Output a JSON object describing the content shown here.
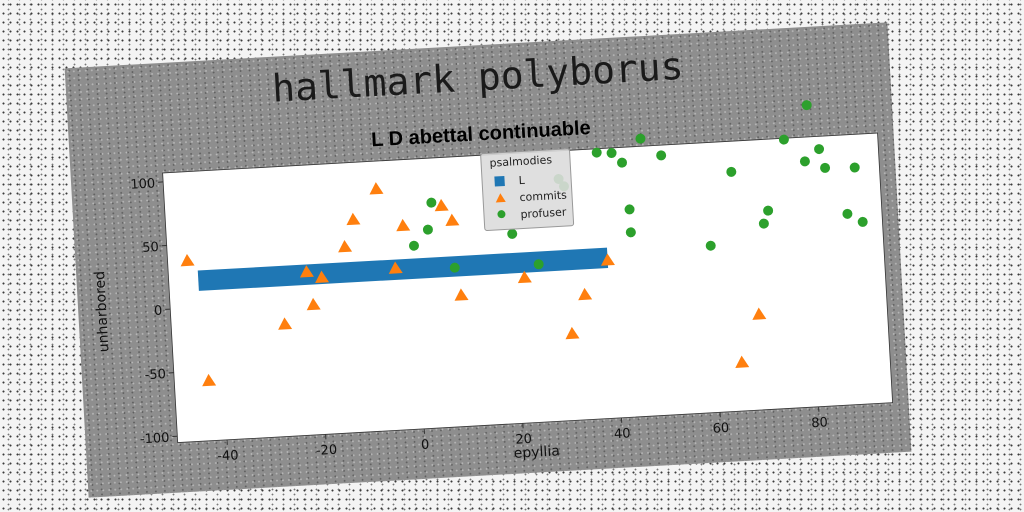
{
  "chart_data": {
    "type": "scatter",
    "suptitle": "hallmark polyborus",
    "title": "L D abettal continuable",
    "xlabel": "epyllia",
    "ylabel": "unharbored",
    "xlim": [
      -50,
      95
    ],
    "ylim": [
      -105,
      107
    ],
    "xticks": [
      -40,
      -20,
      0,
      20,
      40,
      60,
      80
    ],
    "yticks": [
      -100,
      -50,
      0,
      50,
      100
    ],
    "legend": {
      "title": "psalmodies",
      "placement": "top-center"
    },
    "grid": false,
    "series": [
      {
        "name": "L",
        "kind": "bar",
        "color": "#1f77b4",
        "x_start": -44,
        "x_end": 39,
        "y_low": 13,
        "y_high": 29
      },
      {
        "name": "commits",
        "kind": "scatter",
        "marker": "triangle",
        "color": "#ff7f0e",
        "points": [
          [
            -46,
            37
          ],
          [
            -43,
            -58
          ],
          [
            -27,
            -17
          ],
          [
            -22,
            23
          ],
          [
            -21,
            -3
          ],
          [
            -19,
            18
          ],
          [
            -14,
            41
          ],
          [
            -12,
            62
          ],
          [
            -7,
            85
          ],
          [
            -4,
            22
          ],
          [
            -2,
            55
          ],
          [
            6,
            69
          ],
          [
            8,
            57
          ],
          [
            9,
            -2
          ],
          [
            22,
            9
          ],
          [
            31,
            -37
          ],
          [
            34,
            -7
          ],
          [
            39,
            19
          ],
          [
            65,
            -67
          ],
          [
            69,
            -30
          ]
        ]
      },
      {
        "name": "profuser",
        "kind": "scatter",
        "marker": "circle",
        "color": "#2ca02c",
        "points": [
          [
            0,
            39
          ],
          [
            3,
            51
          ],
          [
            4,
            72
          ],
          [
            8,
            20
          ],
          [
            20,
            44
          ],
          [
            25,
            19
          ],
          [
            30,
            85
          ],
          [
            31,
            79
          ],
          [
            38,
            104
          ],
          [
            41,
            103
          ],
          [
            43,
            95
          ],
          [
            44,
            40
          ],
          [
            44,
            58
          ],
          [
            47,
            113
          ],
          [
            51,
            99
          ],
          [
            60,
            26
          ],
          [
            65,
            83
          ],
          [
            71,
            41
          ],
          [
            72,
            51
          ],
          [
            76,
            106
          ],
          [
            80,
            88
          ],
          [
            81,
            132
          ],
          [
            83,
            97
          ],
          [
            84,
            82
          ],
          [
            88,
            45
          ],
          [
            90,
            81
          ],
          [
            91,
            38
          ]
        ]
      }
    ]
  }
}
